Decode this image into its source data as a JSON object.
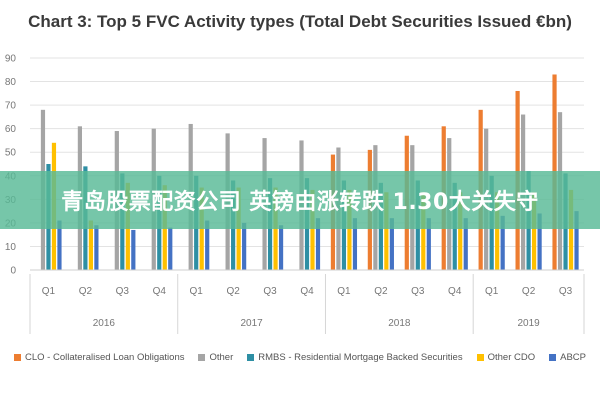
{
  "chart_data": {
    "type": "bar",
    "title": "Chart 3: Top 5 FVC Activity types (Total Debt Securities Issued €bn)",
    "ylim": [
      0,
      90
    ],
    "yticks": [
      0,
      10,
      20,
      30,
      40,
      50,
      60,
      70,
      80,
      90
    ],
    "categories": [
      "Q1",
      "Q2",
      "Q3",
      "Q4",
      "Q1",
      "Q2",
      "Q3",
      "Q4",
      "Q1",
      "Q2",
      "Q3",
      "Q4",
      "Q1",
      "Q2",
      "Q3"
    ],
    "groups": [
      {
        "label": "2016",
        "span": 4
      },
      {
        "label": "2017",
        "span": 4
      },
      {
        "label": "2018",
        "span": 4
      },
      {
        "label": "2019",
        "span": 3
      }
    ],
    "series": [
      {
        "name": "CLO - Collateralised Loan Obligations",
        "color": "#ED7D31",
        "values": [
          null,
          null,
          null,
          null,
          null,
          null,
          null,
          null,
          49,
          51,
          57,
          61,
          68,
          76,
          83
        ]
      },
      {
        "name": "Other",
        "color": "#A5A5A5",
        "values": [
          68,
          61,
          59,
          60,
          62,
          58,
          56,
          55,
          52,
          53,
          53,
          56,
          60,
          66,
          67
        ]
      },
      {
        "name": "RMBS - Residential Mortgage Backed Securities",
        "color": "#2E8FA4",
        "values": [
          45,
          44,
          41,
          40,
          40,
          38,
          39,
          39,
          38,
          37,
          38,
          37,
          40,
          42,
          41
        ]
      },
      {
        "name": "Other CDO",
        "color": "#FFC000",
        "values": [
          54,
          21,
          37,
          36,
          35,
          35,
          35,
          34,
          34,
          33,
          33,
          33,
          33,
          33,
          34
        ]
      },
      {
        "name": "ABCP",
        "color": "#4472C4",
        "values": [
          21,
          19,
          17,
          18,
          21,
          20,
          19,
          22,
          22,
          22,
          22,
          22,
          23,
          24,
          25
        ]
      }
    ]
  },
  "banner": {
    "text": "青岛股票配资公司 英镑由涨转跌 1.30大关失守"
  }
}
